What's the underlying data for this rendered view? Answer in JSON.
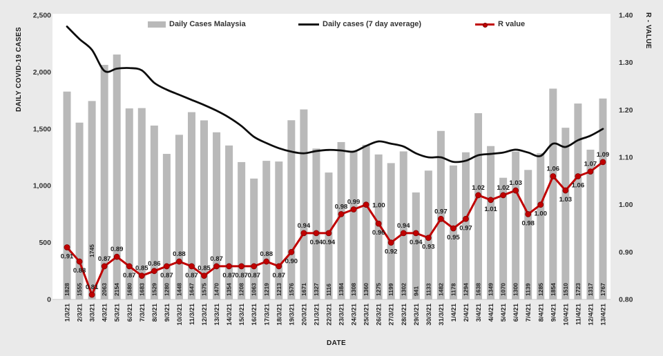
{
  "figure": {
    "bg": "#eaeaea",
    "plot_bg": "#ffffff"
  },
  "colors": {
    "bar": "#b9b9b9",
    "avg_line": "#0d0d0d",
    "r_line": "#c00000",
    "r_marker_edge": "#7f0000",
    "tick_text": "#333333",
    "data_label": "#1a1a1a"
  },
  "legend": {
    "bar_label": "Daily Cases Malaysia",
    "avg_label": "Daily cases (7 day average)",
    "r_label": "R value"
  },
  "axes": {
    "left": {
      "title": "DAILY COVID-19 CASES",
      "ticks": [
        {
          "label": "2,500",
          "value": 2500
        },
        {
          "label": "2,000",
          "value": 2000
        },
        {
          "label": "1,500",
          "value": 1500
        },
        {
          "label": "1,000",
          "value": 1000
        },
        {
          "label": "500",
          "value": 500
        },
        {
          "label": "0",
          "value": 0
        }
      ]
    },
    "right": {
      "title": "R - VALUE",
      "ticks": [
        {
          "label": "1.40",
          "value": 1.4
        },
        {
          "label": "1.30",
          "value": 1.3
        },
        {
          "label": "1.20",
          "value": 1.2
        },
        {
          "label": "1.10",
          "value": 1.1
        },
        {
          "label": "1.00",
          "value": 1.0
        },
        {
          "label": "0.90",
          "value": 0.9
        },
        {
          "label": "0.80",
          "value": 0.8
        }
      ]
    },
    "x": {
      "title": "DATE"
    }
  },
  "chart_data": {
    "type": "combo (bar + 2 lines)",
    "ylim_left": [
      0,
      2500
    ],
    "ylim_right": [
      0.8,
      1.4
    ],
    "grid": false,
    "legend_position": "top inside",
    "categories": [
      "1/3/21",
      "2/3/21",
      "3/3/21",
      "4/3/21",
      "5/3/21",
      "6/3/21",
      "7/3/21",
      "8/3/21",
      "9/3/21",
      "10/3/21",
      "11/3/21",
      "12/3/21",
      "13/3/21",
      "14/3/21",
      "15/3/21",
      "16/3/21",
      "17/3/21",
      "18/3/21",
      "19/3/21",
      "20/3/21",
      "21/3/21",
      "22/3/21",
      "23/3/21",
      "24/3/21",
      "25/3/21",
      "26/3/21",
      "27/3/21",
      "28/3/21",
      "29/3/21",
      "30/3/21",
      "31/3/21",
      "1/4/21",
      "2/4/21",
      "3/4/21",
      "4/4/21",
      "5/4/21",
      "6/4/21",
      "7/4/21",
      "8/4/21",
      "9/4/21",
      "10/4/21",
      "11/4/21",
      "12/4/21",
      "13/4/21"
    ],
    "series": [
      {
        "name": "Daily Cases Malaysia",
        "type": "bar",
        "axis": "left",
        "values": [
          1828,
          1555,
          1745,
          2063,
          2154,
          1680,
          1683,
          1529,
          1280,
          1448,
          1647,
          1575,
          1470,
          1354,
          1208,
          1063,
          1219,
          1213,
          1576,
          1671,
          1327,
          1116,
          1384,
          1308,
          1360,
          1275,
          1199,
          1302,
          941,
          1133,
          1482,
          1178,
          1294,
          1638,
          1349,
          1070,
          1300,
          1139,
          1285,
          1854,
          1510,
          1723,
          1317,
          1767
        ]
      },
      {
        "name": "Daily cases (7 day average)",
        "type": "line",
        "axis": "left",
        "values_estimated": true,
        "values": [
          2400,
          2290,
          2195,
          2010,
          2030,
          2035,
          2015,
          1905,
          1845,
          1800,
          1755,
          1710,
          1660,
          1600,
          1525,
          1430,
          1375,
          1330,
          1300,
          1285,
          1305,
          1315,
          1310,
          1300,
          1350,
          1390,
          1370,
          1345,
          1285,
          1250,
          1250,
          1210,
          1220,
          1268,
          1280,
          1292,
          1317,
          1292,
          1262,
          1370,
          1341,
          1400,
          1440,
          1500
        ]
      },
      {
        "name": "R value",
        "type": "line",
        "axis": "right",
        "values": [
          0.91,
          0.88,
          0.81,
          0.87,
          0.89,
          0.87,
          0.85,
          0.86,
          0.87,
          0.88,
          0.87,
          0.85,
          0.87,
          0.87,
          0.87,
          0.87,
          0.88,
          0.87,
          0.9,
          0.94,
          0.94,
          0.94,
          0.98,
          0.99,
          1.0,
          0.96,
          0.92,
          0.94,
          0.94,
          0.93,
          0.97,
          0.95,
          0.97,
          1.02,
          1.01,
          1.02,
          1.03,
          0.98,
          1.0,
          1.06,
          1.03,
          1.06,
          1.07,
          1.09
        ],
        "label_pos": [
          "b",
          "b",
          "a",
          "a",
          "a",
          "b",
          "a",
          "a",
          "b",
          "a",
          "b",
          "a",
          "a",
          "b",
          "b",
          "b",
          "a",
          "b",
          "b",
          "a",
          "b",
          "b",
          "a",
          "a",
          "r",
          "b",
          "b",
          "a",
          "b",
          "b",
          "a",
          "b",
          "b",
          "a",
          "b",
          "a",
          "a",
          "b",
          "b",
          "a",
          "b",
          "b",
          "a",
          "a"
        ]
      }
    ],
    "bar_label_offsets": {
      "2": -56
    }
  }
}
